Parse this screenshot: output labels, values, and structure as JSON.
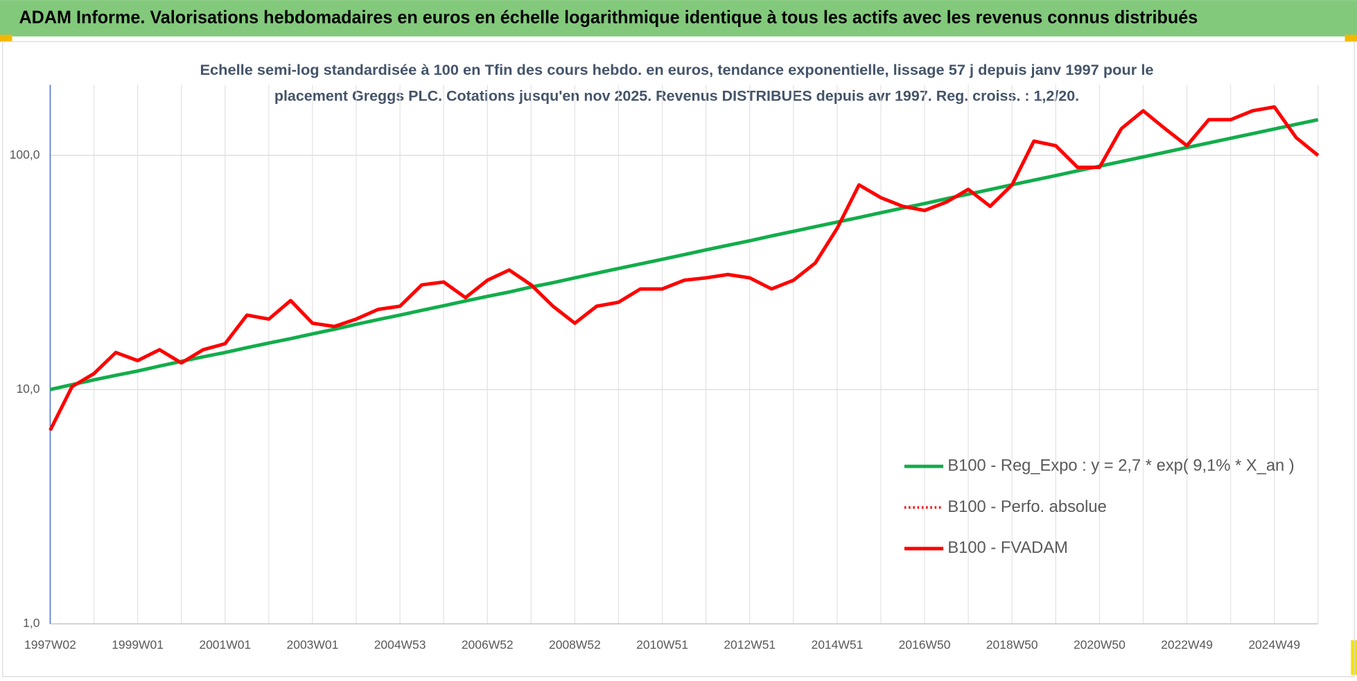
{
  "chart_data": {
    "type": "line",
    "title": "ADAM Informe. Valorisations hebdomadaires en euros en échelle logarithmique identique à tous les actifs avec les revenus connus distribués",
    "subtitle": [
      "Echelle semi-log standardisée à 100 en Tfin des cours hebdo. en euros, tendance exponentielle, lissage 57 j depuis janv 1997 pour le",
      "placement Greggs PLC. Cotations jusqu'en nov 2025. Revenus DISTRIBUES depuis avr 1997. Reg. croiss. : 1,2/20."
    ],
    "categories": [
      "1997W02",
      null,
      null,
      null,
      "1999W01",
      null,
      null,
      null,
      "2001W01",
      null,
      null,
      null,
      "2003W01",
      null,
      null,
      null,
      "2004W53",
      null,
      null,
      null,
      "2006W52",
      null,
      null,
      null,
      "2008W52",
      null,
      null,
      null,
      "2010W51",
      null,
      null,
      null,
      "2012W51",
      null,
      null,
      null,
      "2014W51",
      null,
      null,
      null,
      "2016W50",
      null,
      null,
      null,
      "2018W50",
      null,
      null,
      null,
      "2020W50",
      null,
      null,
      null,
      "2022W49",
      null,
      null,
      null,
      "2024W49",
      null,
      null
    ],
    "series": [
      {
        "name": "B100 - Reg_Expo : y = 2,7 * exp( 9,1% *  X_an )",
        "color": "#12ad4b",
        "style": "solid",
        "values": [
          10.0,
          10.5,
          11.0,
          11.5,
          12.0,
          12.6,
          13.2,
          13.8,
          14.4,
          15.1,
          15.8,
          16.5,
          17.3,
          18.1,
          19.0,
          19.9,
          20.8,
          21.8,
          22.8,
          23.9,
          25.0,
          26.1,
          27.4,
          28.6,
          30.0,
          31.4,
          32.9,
          34.4,
          36.0,
          37.7,
          39.5,
          41.3,
          43.2,
          45.3,
          47.4,
          49.6,
          51.9,
          54.3,
          56.9,
          59.6,
          62.3,
          65.3,
          68.3,
          71.5,
          74.9,
          78.4,
          82.0,
          85.9,
          89.9,
          94.1,
          98.5,
          103.1,
          108.0,
          113.0,
          118.3,
          123.8,
          129.6,
          135.7,
          142.0
        ]
      },
      {
        "name": "B100 - Perfo. absolue",
        "color": "#ff0000",
        "style": "dotted",
        "values": [
          6.7,
          10.3,
          11.7,
          14.4,
          13.3,
          14.8,
          13.0,
          14.8,
          15.7,
          20.8,
          20.0,
          24.0,
          19.2,
          18.6,
          20.0,
          22.0,
          22.7,
          28.0,
          28.8,
          24.7,
          29.3,
          32.4,
          28.0,
          22.7,
          19.2,
          22.7,
          23.6,
          26.9,
          26.9,
          29.3,
          30.0,
          31.0,
          30.0,
          26.9,
          29.3,
          34.7,
          48.8,
          74.8,
          66.0,
          60.6,
          58.2,
          63.2,
          71.6,
          60.6,
          74.8,
          115,
          110,
          88.9,
          88.9,
          130,
          155,
          130,
          110,
          142,
          142,
          155,
          161,
          119,
          100
        ]
      },
      {
        "name": "B100 - FVADAM",
        "color": "#ff0000",
        "style": "solid",
        "values": [
          6.7,
          10.3,
          11.7,
          14.4,
          13.3,
          14.8,
          13.0,
          14.8,
          15.7,
          20.8,
          20.0,
          24.0,
          19.2,
          18.6,
          20.0,
          22.0,
          22.7,
          28.0,
          28.8,
          24.7,
          29.3,
          32.4,
          28.0,
          22.7,
          19.2,
          22.7,
          23.6,
          26.9,
          26.9,
          29.3,
          30.0,
          31.0,
          30.0,
          26.9,
          29.3,
          34.7,
          48.8,
          74.8,
          66.0,
          60.6,
          58.2,
          63.2,
          71.6,
          60.6,
          74.8,
          115,
          110,
          88.9,
          88.9,
          130,
          155,
          130,
          110,
          142,
          142,
          155,
          161,
          119,
          100
        ]
      }
    ],
    "ylim": [
      1,
      200
    ],
    "yticks": [
      {
        "value": 1,
        "label": "1,0"
      },
      {
        "value": 10,
        "label": "10,0"
      },
      {
        "value": 100,
        "label": "100,0"
      }
    ],
    "log_y": true,
    "grid": true,
    "legend": "right"
  }
}
